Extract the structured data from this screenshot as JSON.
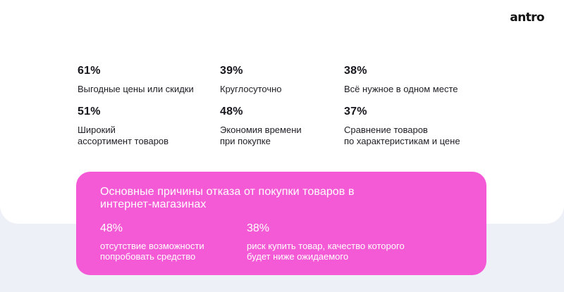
{
  "brand": {
    "logo_text": "antro"
  },
  "reasons": [
    {
      "percent": "61%",
      "label": "Выгодные цены или скидки"
    },
    {
      "percent": "39%",
      "label": "Круглосуточно"
    },
    {
      "percent": "38%",
      "label": "Всё нужное в одном месте"
    },
    {
      "percent": "51%",
      "label": "Широкий\nассортимент товаров"
    },
    {
      "percent": "48%",
      "label": "Экономия времени\nпри покупке"
    },
    {
      "percent": "37%",
      "label": "Сравнение товаров\nпо характеристикам и цене"
    }
  ],
  "refusal": {
    "title": "Основные причины отказа от покупки товаров в интернет-магазинах",
    "items": [
      {
        "percent": "48%",
        "label": "отсутствие возможности\nпопробовать средство"
      },
      {
        "percent": "38%",
        "label": "риск купить товар, качество которого\nбудет ниже ожидаемого"
      }
    ]
  },
  "colors": {
    "accent": "#f55ad6",
    "page_bg": "#eef0f7",
    "card_bg": "#ffffff",
    "text": "#16161d"
  }
}
